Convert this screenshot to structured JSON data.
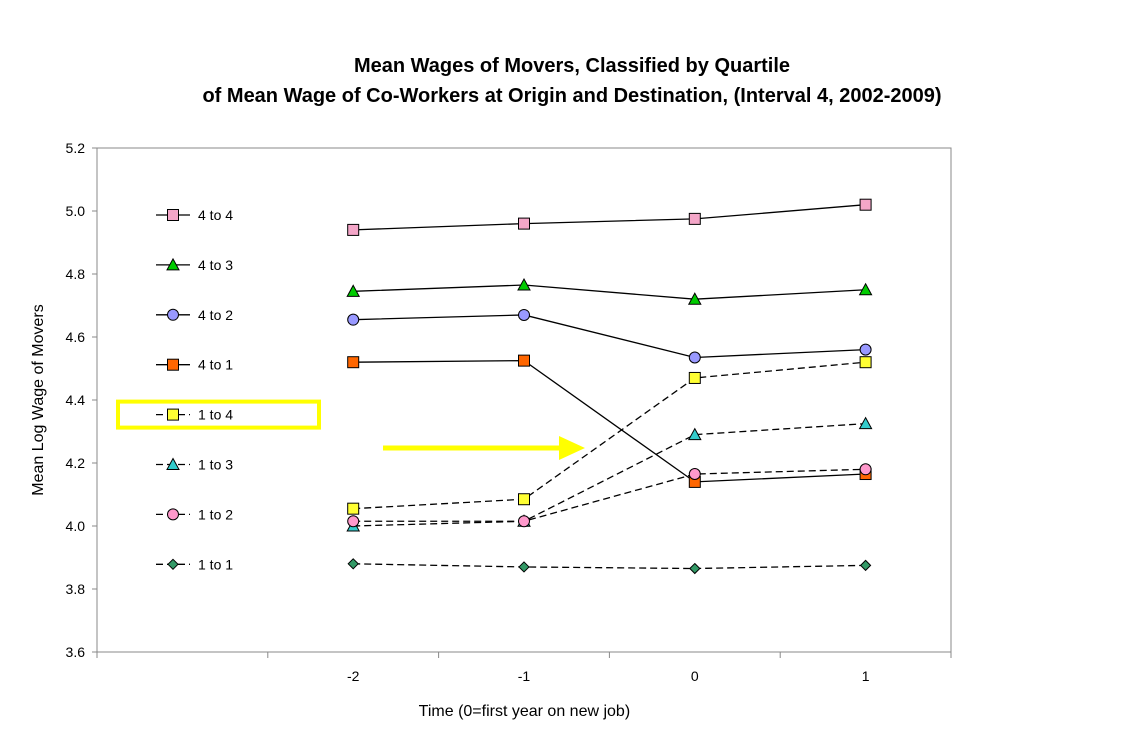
{
  "chart_data": {
    "type": "line",
    "title": [
      "Mean Wages of Movers, Classified by Quartile",
      "of Mean Wage of Co-Workers at Origin and Destination, (Interval 4, 2002-2009)"
    ],
    "xlabel": "Time (0=first year on new job)",
    "ylabel": "Mean Log Wage of Movers",
    "x": [
      -2,
      -1,
      0,
      1
    ],
    "x_tick_labels": [
      "-2",
      "-1",
      "0",
      "1"
    ],
    "ylim": [
      3.6,
      5.2
    ],
    "y_ticks": [
      "3.6",
      "3.8",
      "4.0",
      "4.2",
      "4.4",
      "4.6",
      "4.8",
      "5.0",
      "5.2"
    ],
    "grid": false,
    "legend_position": "left",
    "highlighted_series": "1 to 4",
    "highlight_color": "#ffff00",
    "series": [
      {
        "name": "4 to 4",
        "values": [
          4.94,
          4.96,
          4.975,
          5.02
        ],
        "marker": "square",
        "color": "#f4a6c8",
        "dashed": false
      },
      {
        "name": "4 to 3",
        "values": [
          4.745,
          4.765,
          4.72,
          4.75
        ],
        "marker": "triangle",
        "color": "#00cc00",
        "dashed": false
      },
      {
        "name": "4 to 2",
        "values": [
          4.655,
          4.67,
          4.535,
          4.56
        ],
        "marker": "circle",
        "color": "#9999ff",
        "dashed": false
      },
      {
        "name": "4 to 1",
        "values": [
          4.52,
          4.525,
          4.14,
          4.165
        ],
        "marker": "square",
        "color": "#ff6600",
        "dashed": false
      },
      {
        "name": "1 to 4",
        "values": [
          4.055,
          4.085,
          4.47,
          4.52
        ],
        "marker": "square",
        "color": "#ffff33",
        "dashed": true
      },
      {
        "name": "1 to 3",
        "values": [
          4.0,
          4.015,
          4.29,
          4.325
        ],
        "marker": "triangle",
        "color": "#33cccc",
        "dashed": true
      },
      {
        "name": "1 to 2",
        "values": [
          4.015,
          4.015,
          4.165,
          4.18
        ],
        "marker": "circle",
        "color": "#ff99cc",
        "dashed": true
      },
      {
        "name": "1 to 1",
        "values": [
          3.88,
          3.87,
          3.865,
          3.875
        ],
        "marker": "diamond",
        "color": "#339966",
        "dashed": true
      }
    ]
  }
}
